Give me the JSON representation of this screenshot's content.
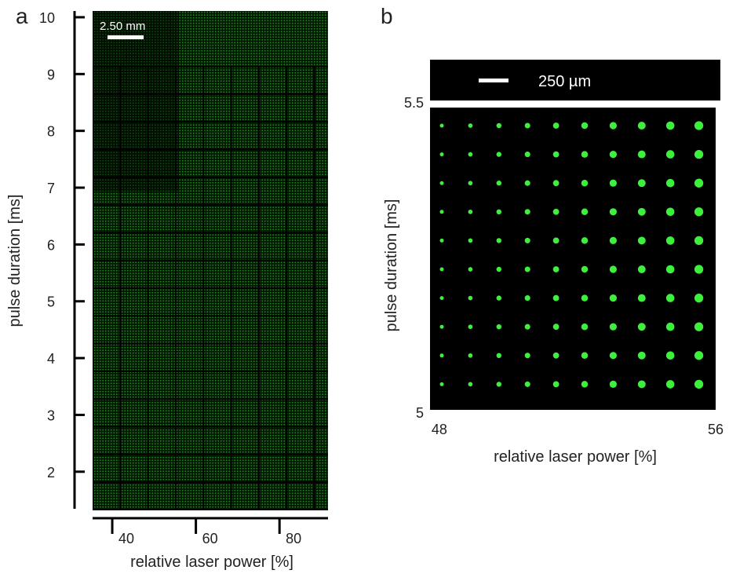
{
  "chart_data": [
    {
      "type": "image",
      "panel_label": "a",
      "xlabel": "relative laser power [%]",
      "ylabel": "pulse duration [ms]",
      "xlim": [
        35.3,
        91.6
      ],
      "xticks": [
        40,
        60,
        80
      ],
      "ylim": [
        1.32,
        10.11
      ],
      "yticks": [
        2,
        3,
        4,
        5,
        6,
        7,
        8,
        9,
        10
      ],
      "scale_bar": "2.50 mm"
    },
    {
      "type": "image",
      "panel_label": "b",
      "xlabel": "relative laser power [%]",
      "ylabel": "pulse duration [ms]",
      "xlim": [
        47.73,
        56
      ],
      "xticks": [
        48,
        56
      ],
      "ylim": [
        5,
        5.5
      ],
      "yticks": [
        5,
        5.5
      ],
      "scale_bar": "250 µm"
    }
  ]
}
